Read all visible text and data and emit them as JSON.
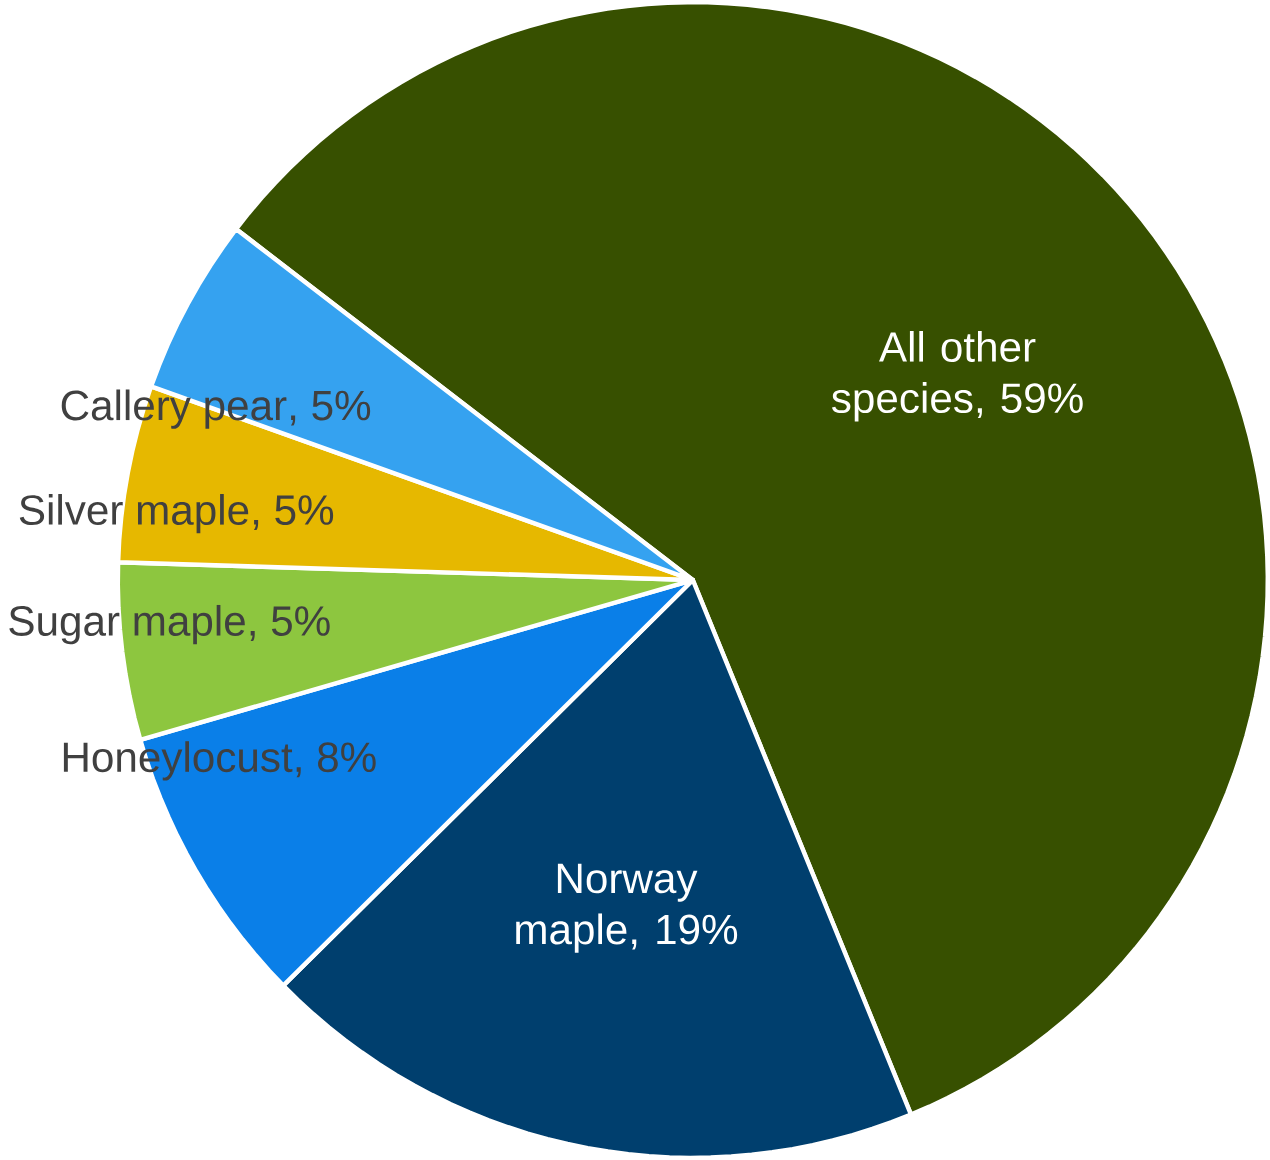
{
  "chart_data": {
    "type": "pie",
    "categories": [
      "All other species",
      "Norway maple",
      "Honeylocust",
      "Sugar maple",
      "Silver maple",
      "Callery pear"
    ],
    "values": [
      59,
      19,
      8,
      5,
      5,
      5
    ],
    "value_labels": [
      ", 59%",
      ", 19%",
      ", 8%",
      ", 5%",
      ", 5%",
      ", 5%"
    ],
    "colors": [
      "#375000",
      "#003f6e",
      "#0a7fe8",
      "#8dc63f",
      "#e6b800",
      "#35a2f0"
    ]
  }
}
